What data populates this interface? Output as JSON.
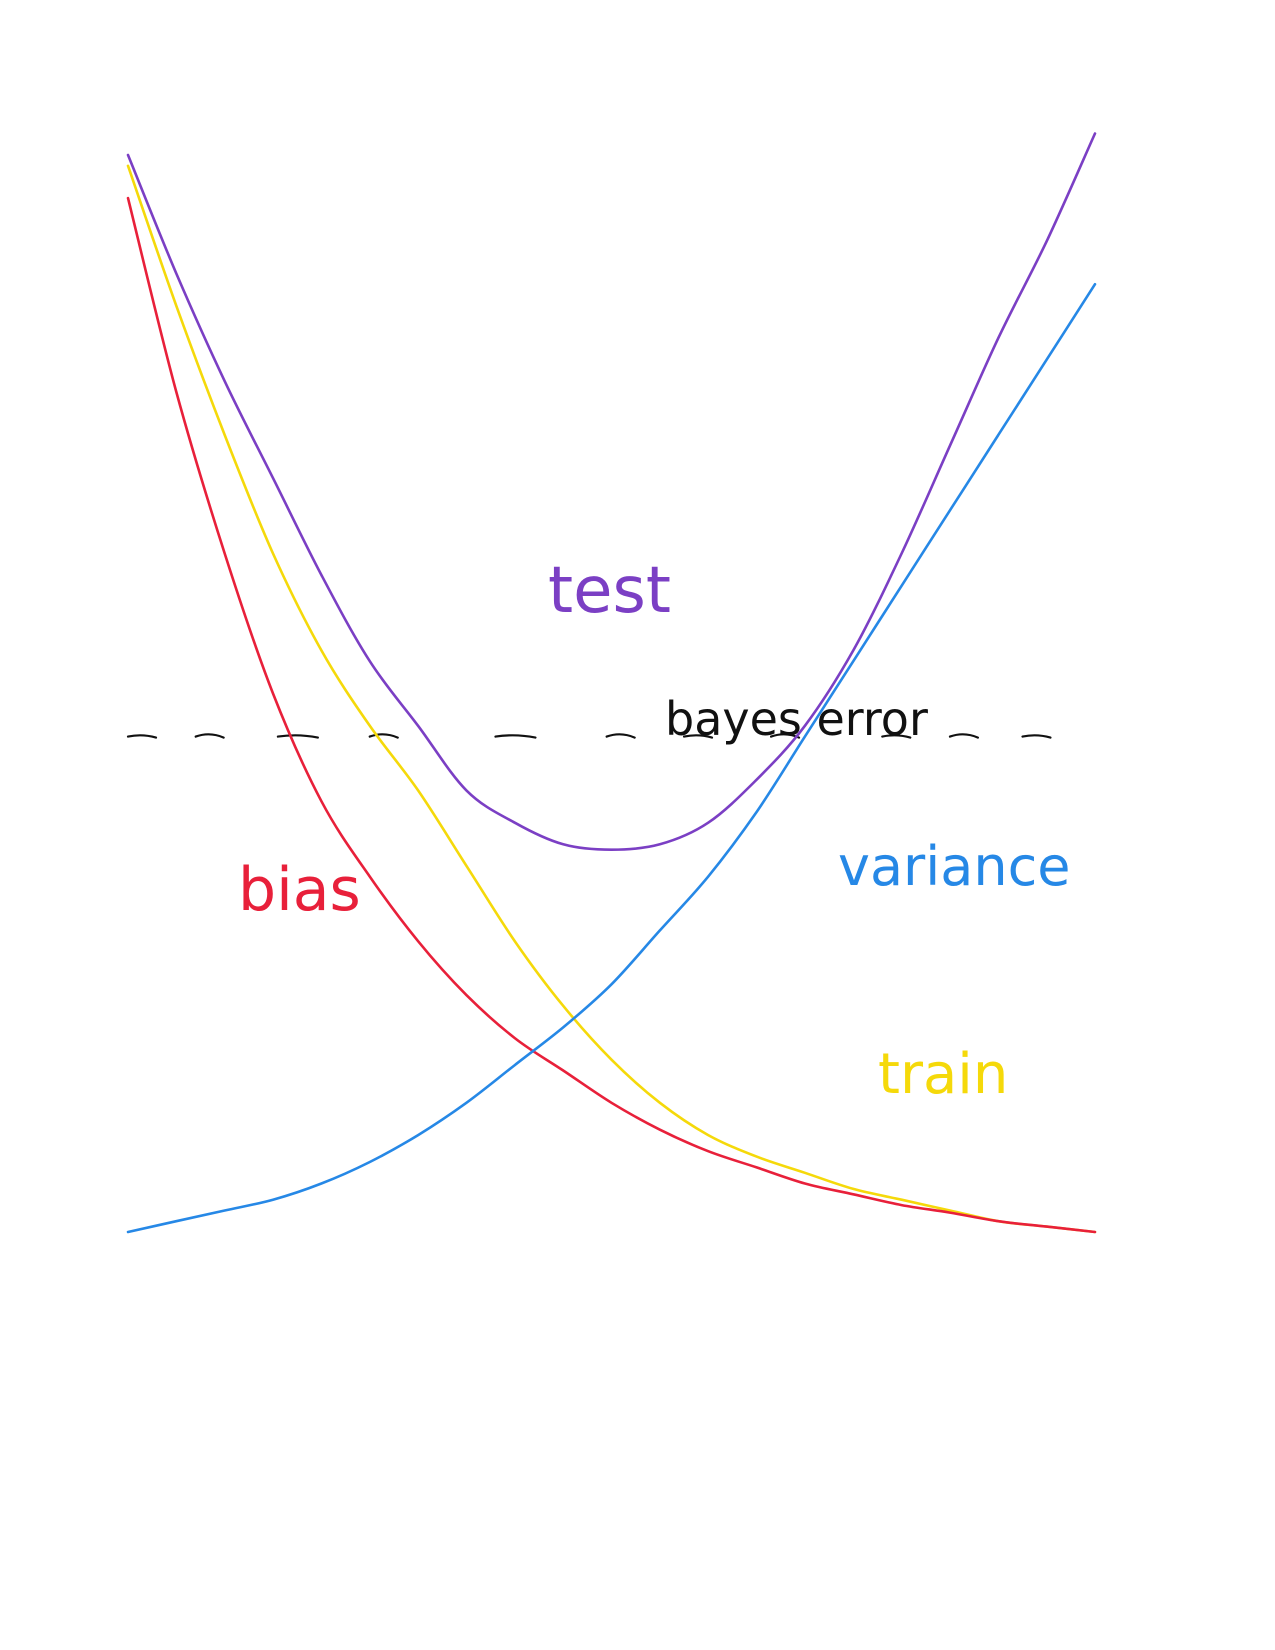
{
  "chart_data": {
    "type": "line",
    "title": "",
    "xlabel": "",
    "ylabel": "",
    "grid": false,
    "legend": "none",
    "xlim": [
      0,
      1
    ],
    "ylim": [
      0,
      1
    ],
    "series": [
      {
        "name": "test",
        "color": "#7b3fc4",
        "x": [
          0.0,
          0.05,
          0.1,
          0.15,
          0.2,
          0.25,
          0.3,
          0.35,
          0.4,
          0.45,
          0.5,
          0.55,
          0.6,
          0.65,
          0.7,
          0.75,
          0.8,
          0.85,
          0.9,
          0.95,
          1.0
        ],
        "y": [
          1.0,
          0.89,
          0.79,
          0.7,
          0.61,
          0.53,
          0.47,
          0.41,
          0.38,
          0.36,
          0.355,
          0.36,
          0.38,
          0.42,
          0.47,
          0.54,
          0.63,
          0.73,
          0.83,
          0.92,
          1.02
        ]
      },
      {
        "name": "train",
        "color": "#f5d90a",
        "x": [
          0.0,
          0.05,
          0.1,
          0.15,
          0.2,
          0.25,
          0.3,
          0.35,
          0.4,
          0.45,
          0.5,
          0.55,
          0.6,
          0.65,
          0.7,
          0.75,
          0.8,
          0.85,
          0.9,
          0.95,
          1.0
        ],
        "y": [
          0.99,
          0.86,
          0.74,
          0.63,
          0.54,
          0.47,
          0.41,
          0.34,
          0.27,
          0.21,
          0.16,
          0.12,
          0.09,
          0.07,
          0.055,
          0.04,
          0.03,
          0.02,
          0.01,
          0.005,
          0.0
        ]
      },
      {
        "name": "bias",
        "color": "#e8203a",
        "x": [
          0.0,
          0.05,
          0.1,
          0.15,
          0.2,
          0.25,
          0.3,
          0.35,
          0.4,
          0.45,
          0.5,
          0.55,
          0.6,
          0.65,
          0.7,
          0.75,
          0.8,
          0.85,
          0.9,
          0.95,
          1.0
        ],
        "y": [
          0.96,
          0.78,
          0.63,
          0.5,
          0.4,
          0.33,
          0.27,
          0.22,
          0.18,
          0.15,
          0.12,
          0.095,
          0.075,
          0.06,
          0.045,
          0.035,
          0.025,
          0.018,
          0.01,
          0.005,
          0.0
        ]
      },
      {
        "name": "variance",
        "color": "#2688e6",
        "x": [
          0.0,
          0.05,
          0.1,
          0.15,
          0.2,
          0.25,
          0.3,
          0.35,
          0.4,
          0.45,
          0.5,
          0.55,
          0.6,
          0.65,
          0.7,
          0.75,
          0.8,
          0.85,
          0.9,
          0.95,
          1.0
        ],
        "y": [
          0.0,
          0.01,
          0.02,
          0.03,
          0.045,
          0.065,
          0.09,
          0.12,
          0.155,
          0.19,
          0.23,
          0.28,
          0.33,
          0.39,
          0.46,
          0.53,
          0.6,
          0.67,
          0.74,
          0.81,
          0.88
        ]
      }
    ],
    "reference_line": {
      "name": "bayes error",
      "style": "dashed",
      "color": "#111111",
      "y": 0.46
    },
    "annotations": [
      {
        "text": "test",
        "color": "#7b3fc4"
      },
      {
        "text": "bayes error",
        "color": "#111111"
      },
      {
        "text": "bias",
        "color": "#e8203a"
      },
      {
        "text": "variance",
        "color": "#2688e6"
      },
      {
        "text": "train",
        "color": "#f5d90a"
      }
    ]
  }
}
